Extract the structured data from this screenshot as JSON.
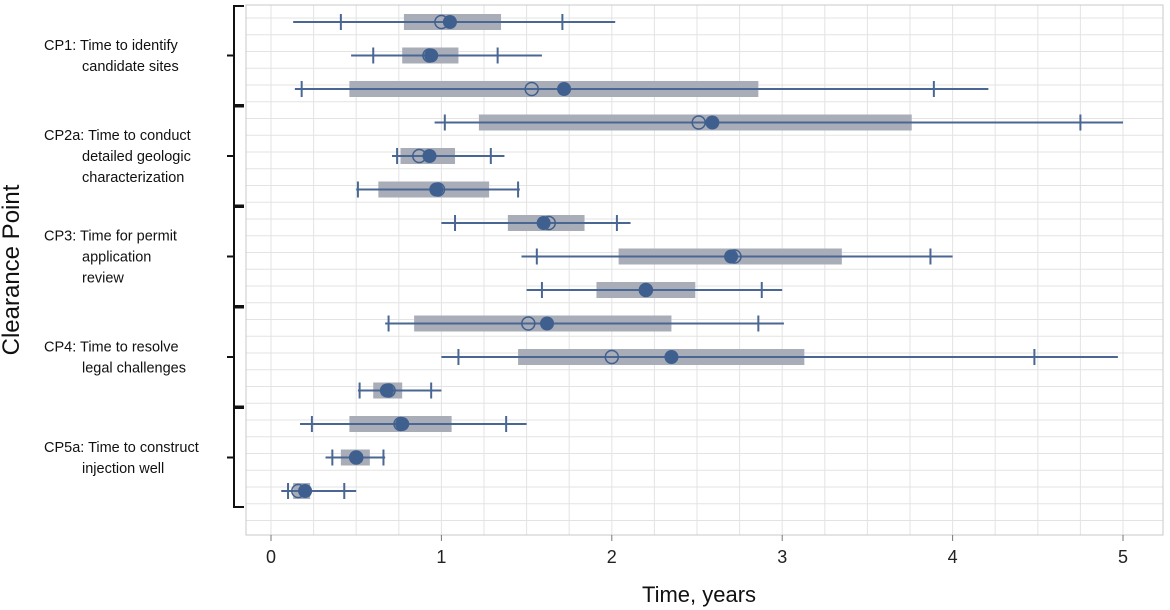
{
  "chart_data": {
    "type": "box",
    "xlabel": "Time, years",
    "ylabel": "Clearance Point",
    "xlim": [
      0,
      5
    ],
    "xticks": [
      "0",
      "1",
      "2",
      "3",
      "4",
      "5"
    ],
    "grid": true,
    "groups": [
      {
        "id": "cp1",
        "label_lines": [
          "CP1: Time to identify",
          "candidate sites"
        ],
        "rows": [
          0,
          1,
          2
        ]
      },
      {
        "id": "cp2a",
        "label_lines": [
          "CP2a: Time to conduct",
          "detailed geologic",
          "characterization"
        ],
        "rows": [
          3,
          4,
          5
        ]
      },
      {
        "id": "cp3",
        "label_lines": [
          "CP3: Time for permit",
          "application",
          "review"
        ],
        "rows": [
          6,
          7,
          8
        ]
      },
      {
        "id": "cp4",
        "label_lines": [
          "CP4: Time to resolve",
          "legal challenges"
        ],
        "rows": [
          9,
          10,
          11
        ]
      },
      {
        "id": "cp5a",
        "label_lines": [
          "CP5a: Time to construct",
          "injection well"
        ],
        "rows": [
          12,
          13,
          14
        ]
      }
    ],
    "rows": [
      {
        "wmin": 0.13,
        "p10": 0.41,
        "q1": 0.78,
        "q3": 1.35,
        "p90": 1.71,
        "wmax": 2.02,
        "median": 1.0,
        "mean": 1.05
      },
      {
        "wmin": 0.47,
        "p10": 0.6,
        "q1": 0.77,
        "q3": 1.1,
        "p90": 1.33,
        "wmax": 1.59,
        "median": 0.93,
        "mean": 0.94
      },
      {
        "wmin": 0.14,
        "p10": 0.18,
        "q1": 0.46,
        "q3": 2.86,
        "p90": 3.89,
        "wmax": 4.21,
        "median": 1.53,
        "mean": 1.72
      },
      {
        "wmin": 0.96,
        "p10": 1.02,
        "q1": 1.22,
        "q3": 3.76,
        "p90": 4.75,
        "wmax": 5.0,
        "median": 2.51,
        "mean": 2.59
      },
      {
        "wmin": 0.71,
        "p10": 0.74,
        "q1": 0.76,
        "q3": 1.08,
        "p90": 1.29,
        "wmax": 1.37,
        "median": 0.87,
        "mean": 0.93
      },
      {
        "wmin": 0.5,
        "p10": 0.51,
        "q1": 0.63,
        "q3": 1.28,
        "p90": 1.45,
        "wmax": 1.46,
        "median": 0.98,
        "mean": 0.97
      },
      {
        "wmin": 1.0,
        "p10": 1.08,
        "q1": 1.39,
        "q3": 1.84,
        "p90": 2.03,
        "wmax": 2.11,
        "median": 1.63,
        "mean": 1.6
      },
      {
        "wmin": 1.47,
        "p10": 1.56,
        "q1": 2.04,
        "q3": 3.35,
        "p90": 3.87,
        "wmax": 4.0,
        "median": 2.72,
        "mean": 2.7
      },
      {
        "wmin": 1.5,
        "p10": 1.59,
        "q1": 1.91,
        "q3": 2.49,
        "p90": 2.88,
        "wmax": 3.0,
        "median": 2.2,
        "mean": 2.2
      },
      {
        "wmin": 0.67,
        "p10": 0.69,
        "q1": 0.84,
        "q3": 2.35,
        "p90": 2.86,
        "wmax": 3.01,
        "median": 1.51,
        "mean": 1.62
      },
      {
        "wmin": 1.0,
        "p10": 1.1,
        "q1": 1.45,
        "q3": 3.13,
        "p90": 4.48,
        "wmax": 4.97,
        "median": 2.0,
        "mean": 2.35
      },
      {
        "wmin": 0.51,
        "p10": 0.52,
        "q1": 0.6,
        "q3": 0.77,
        "p90": 0.94,
        "wmax": 1.0,
        "median": 0.69,
        "mean": 0.68
      },
      {
        "wmin": 0.17,
        "p10": 0.24,
        "q1": 0.46,
        "q3": 1.06,
        "p90": 1.38,
        "wmax": 1.5,
        "median": 0.76,
        "mean": 0.77
      },
      {
        "wmin": 0.32,
        "p10": 0.36,
        "q1": 0.41,
        "q3": 0.58,
        "p90": 0.66,
        "wmax": 0.67,
        "median": 0.5,
        "mean": 0.5
      },
      {
        "wmin": 0.06,
        "p10": 0.1,
        "q1": 0.13,
        "q3": 0.23,
        "p90": 0.43,
        "wmax": 0.5,
        "median": 0.16,
        "mean": 0.2
      }
    ],
    "colors": {
      "box_fill": "#a9adb8",
      "line": "#4a6793",
      "marker": "#3f5f8f",
      "grid": "#e3e3e3",
      "frame": "#c8c8c8"
    }
  }
}
